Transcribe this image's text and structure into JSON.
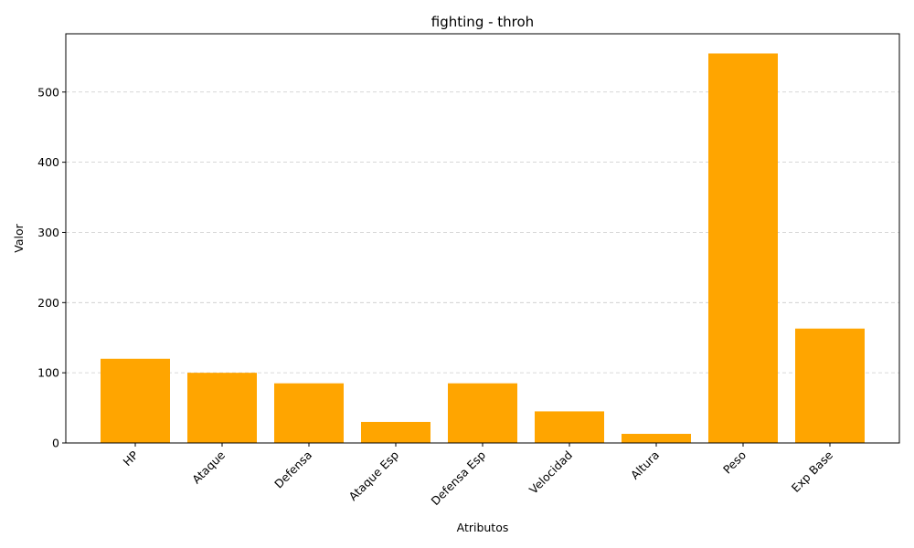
{
  "chart_data": {
    "type": "bar",
    "title": "fighting - throh",
    "xlabel": "Atributos",
    "ylabel": "Valor",
    "categories": [
      "HP",
      "Ataque",
      "Defensa",
      "Ataque Esp",
      "Defensa Esp",
      "Velocidad",
      "Altura",
      "Peso",
      "Exp Base"
    ],
    "values": [
      120,
      100,
      85,
      30,
      85,
      45,
      13,
      555,
      163
    ],
    "ylim": [
      0,
      583
    ],
    "yticks": [
      0,
      100,
      200,
      300,
      400,
      500
    ],
    "grid": "y-dashed",
    "bar_color": "#FFA500"
  }
}
